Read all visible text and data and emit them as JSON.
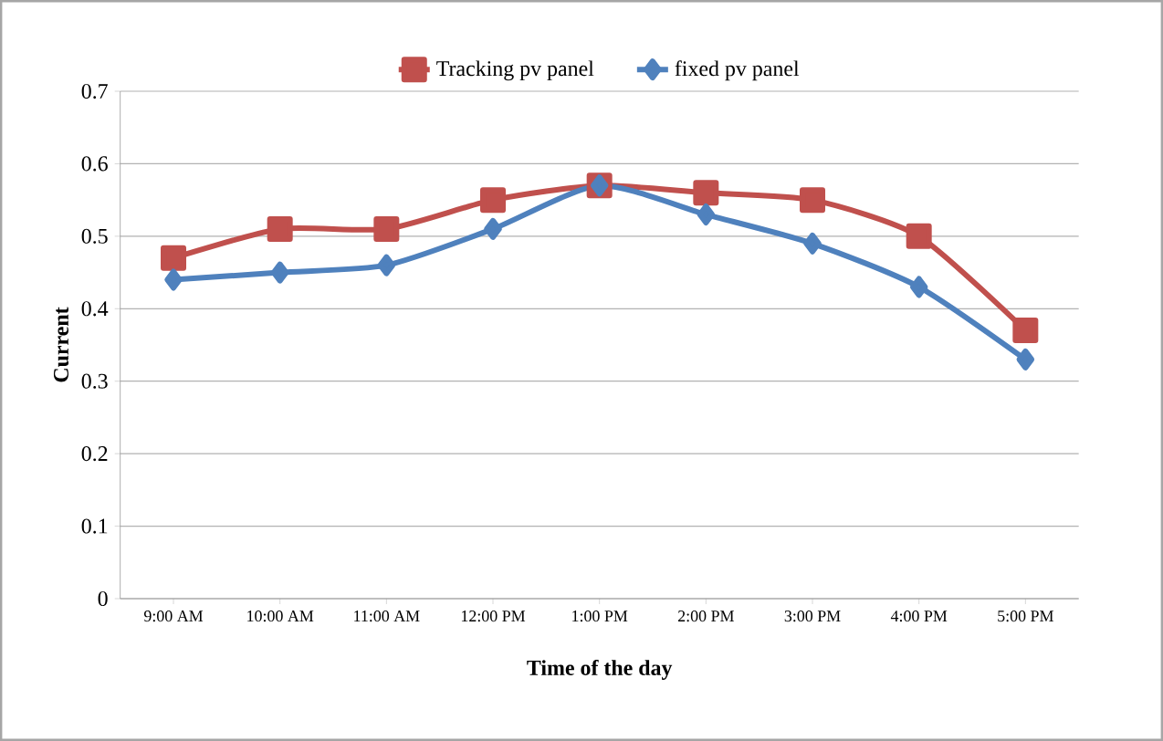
{
  "chart_data": {
    "type": "line",
    "xlabel": "Time of the day",
    "ylabel": "Current",
    "categories": [
      "9:00 AM",
      "10:00 AM",
      "11:00 AM",
      "12:00 PM",
      "1:00 PM",
      "2:00 PM",
      "3:00 PM",
      "4:00 PM",
      "5:00 PM"
    ],
    "series": [
      {
        "name": "Tracking pv panel",
        "color": "#c0504d",
        "marker": "square",
        "values": [
          0.47,
          0.51,
          0.51,
          0.55,
          0.57,
          0.56,
          0.55,
          0.5,
          0.37
        ]
      },
      {
        "name": "fixed pv panel",
        "color": "#4f81bd",
        "marker": "diamond",
        "values": [
          0.44,
          0.45,
          0.46,
          0.51,
          0.57,
          0.53,
          0.49,
          0.43,
          0.33
        ]
      }
    ],
    "ylim": [
      0,
      0.7
    ],
    "yticks": [
      0,
      0.1,
      0.2,
      0.3,
      0.4,
      0.5,
      0.6,
      0.7
    ],
    "grid": "y",
    "legend": "top"
  }
}
